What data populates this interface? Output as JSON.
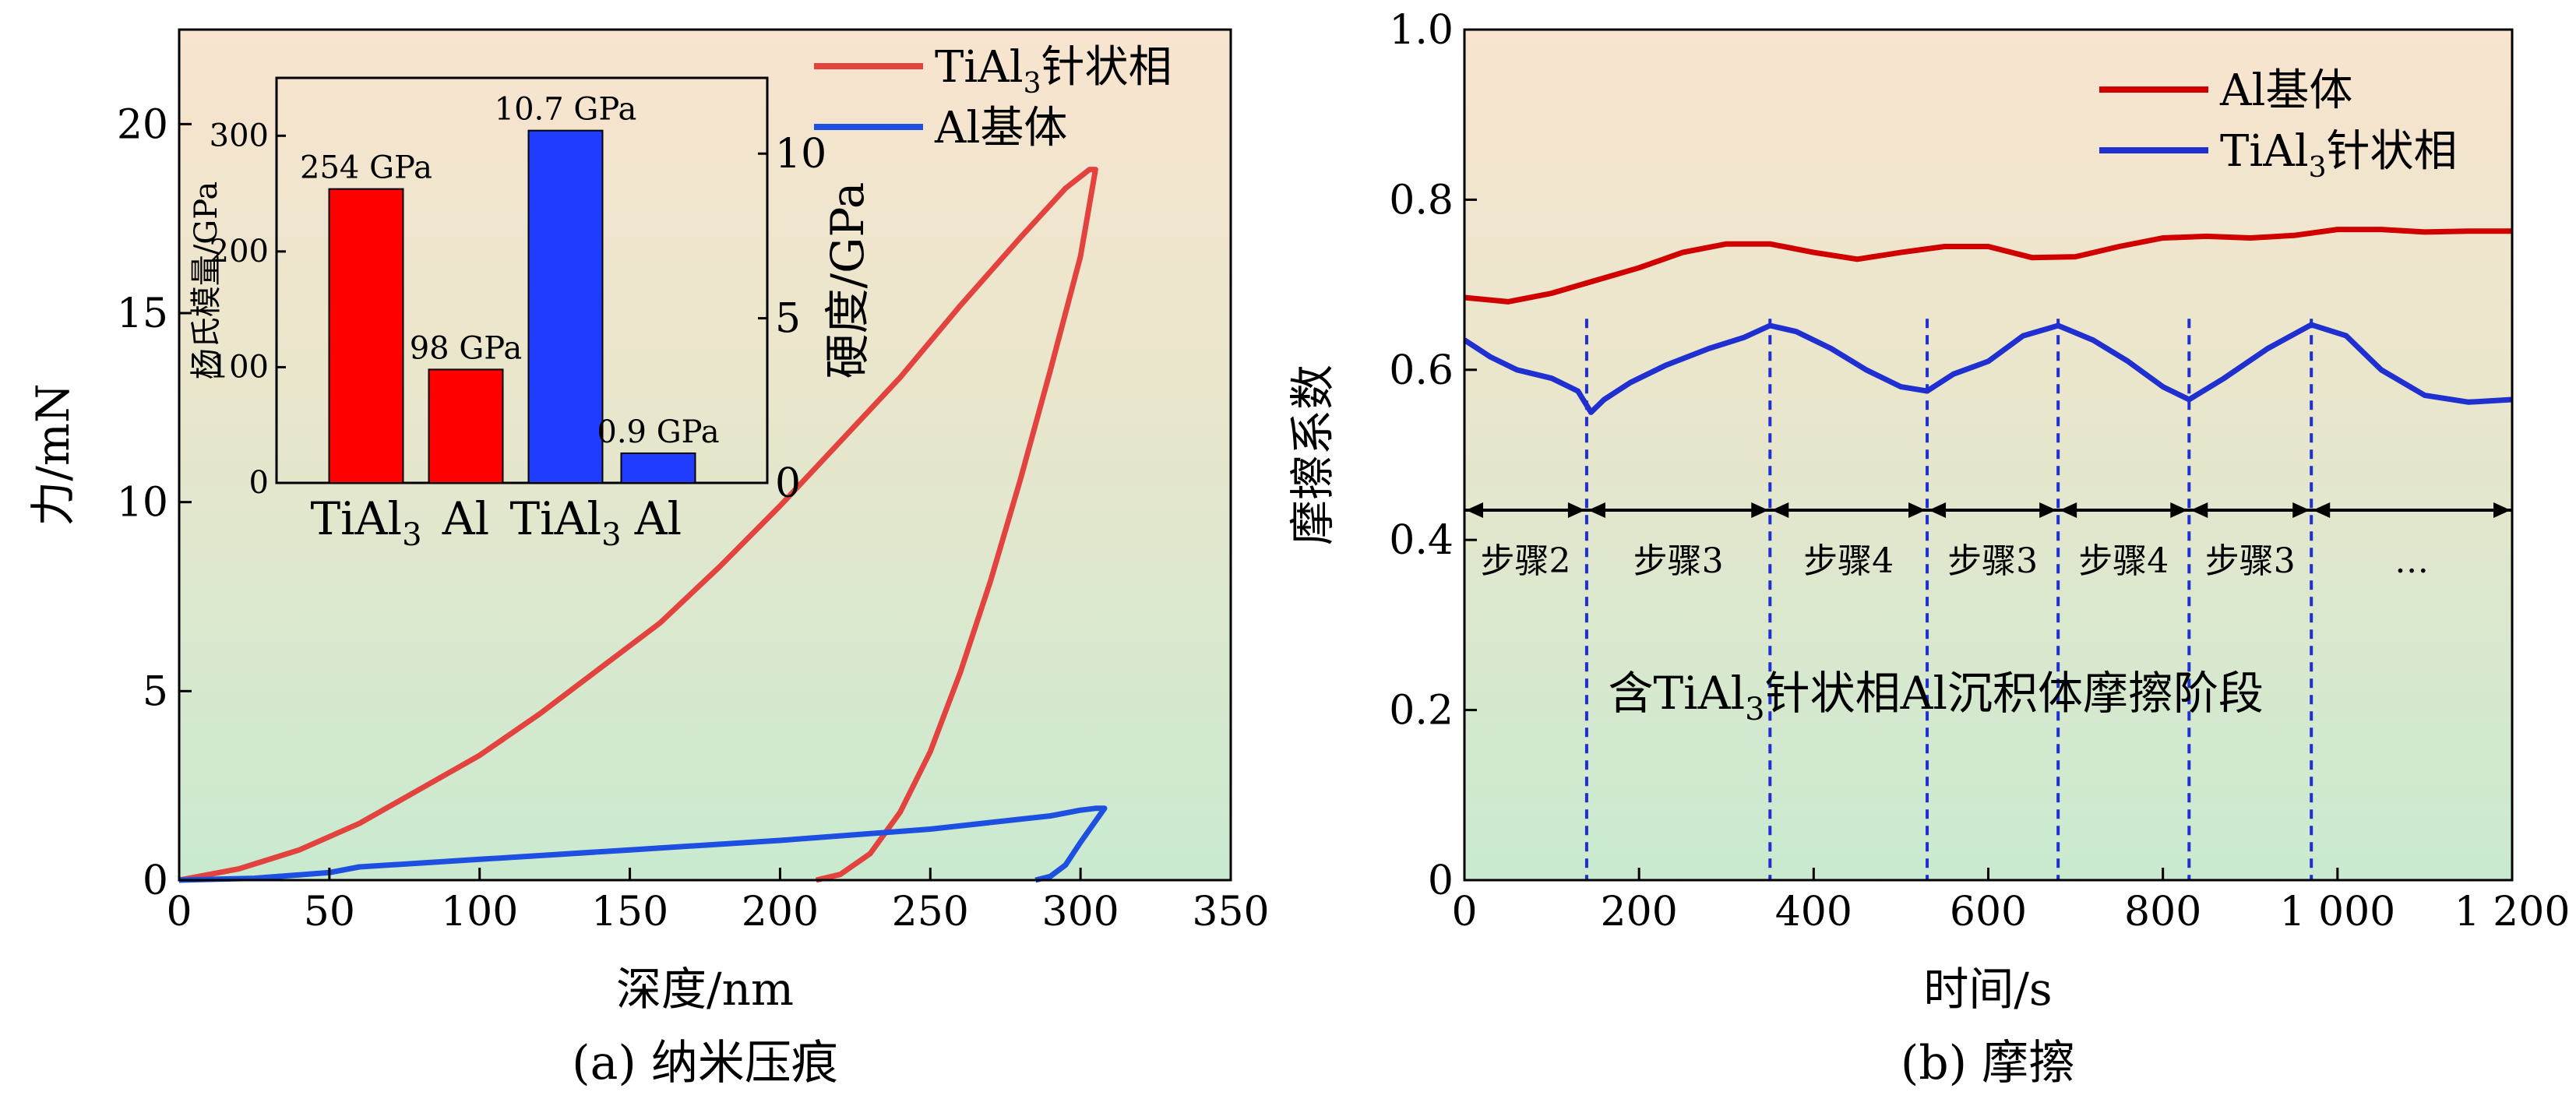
{
  "colors": {
    "red": "#e2433f",
    "blue": "#1d4fe0",
    "inset_red": "#ff0000",
    "inset_blue": "#1f3cff",
    "dark_red": "#d00000",
    "dark_blue": "#1f2fd0",
    "bg_top": "#f8e4cf",
    "bg_bottom": "#c9ead0"
  },
  "chart_data": [
    {
      "type": "line",
      "caption": "(a) 纳米压痕",
      "xlabel": "深度/nm",
      "ylabel": "力/mN",
      "xlim": [
        0,
        350
      ],
      "ylim": [
        0,
        22.5
      ],
      "xticks": [
        0,
        50,
        100,
        150,
        200,
        250,
        300,
        350
      ],
      "yticks": [
        0,
        5,
        10,
        15,
        20
      ],
      "legend": {
        "position": "top-right",
        "entries": [
          {
            "label_main": "TiAl",
            "label_sub": "3",
            "label_tail": "针状相",
            "color": "red"
          },
          {
            "label_main": "Al基体",
            "label_sub": "",
            "label_tail": "",
            "color": "blue"
          }
        ]
      },
      "series": [
        {
          "name": "TiAl3针状相",
          "color": "red",
          "x": [
            0,
            20,
            40,
            60,
            80,
            100,
            120,
            140,
            160,
            180,
            200,
            220,
            240,
            260,
            280,
            295,
            303,
            305,
            300,
            290,
            280,
            270,
            260,
            250,
            240,
            230,
            220,
            212
          ],
          "y": [
            0,
            0.3,
            0.8,
            1.5,
            2.4,
            3.3,
            4.4,
            5.6,
            6.8,
            8.3,
            9.9,
            11.6,
            13.3,
            15.2,
            17.0,
            18.3,
            18.8,
            18.8,
            16.5,
            13.5,
            10.6,
            7.9,
            5.5,
            3.4,
            1.8,
            0.7,
            0.15,
            0
          ]
        },
        {
          "name": "Al基体",
          "color": "blue",
          "x": [
            0,
            25,
            50,
            60,
            100,
            150,
            200,
            250,
            290,
            300,
            305,
            308,
            300,
            295,
            290,
            285
          ],
          "y": [
            0,
            0.05,
            0.2,
            0.35,
            0.55,
            0.8,
            1.05,
            1.35,
            1.7,
            1.85,
            1.9,
            1.9,
            1.0,
            0.4,
            0.1,
            0
          ]
        }
      ],
      "inset": {
        "type": "bar",
        "ylabel_left": "杨氏模量/GPa",
        "ylabel_right": "硬度/GPa",
        "ylim_left": [
          0,
          350
        ],
        "yticks_left": [
          0,
          100,
          200,
          300
        ],
        "ylim_right": [
          0,
          12.3
        ],
        "yticks_right": [
          0,
          5,
          10
        ],
        "categories": [
          {
            "main": "TiAl",
            "sub": "3"
          },
          {
            "main": "Al",
            "sub": ""
          },
          {
            "main": "TiAl",
            "sub": "3"
          },
          {
            "main": "Al",
            "sub": ""
          }
        ],
        "bars": [
          {
            "group": "杨氏模量",
            "axis": "left",
            "value": 254,
            "label": "254 GPa",
            "color": "inset_red"
          },
          {
            "group": "杨氏模量",
            "axis": "left",
            "value": 98,
            "label": "98 GPa",
            "color": "inset_red"
          },
          {
            "group": "硬度",
            "axis": "right",
            "value": 10.7,
            "label": "10.7 GPa",
            "color": "inset_blue"
          },
          {
            "group": "硬度",
            "axis": "right",
            "value": 0.9,
            "label": "0.9 GPa",
            "color": "inset_blue"
          }
        ]
      }
    },
    {
      "type": "line",
      "caption": "(b) 摩擦",
      "xlabel": "时间/s",
      "ylabel": "摩擦系数",
      "xlim": [
        0,
        1200
      ],
      "ylim": [
        0,
        1.0
      ],
      "xticks": [
        0,
        200,
        400,
        600,
        800,
        1000,
        1200
      ],
      "xtick_labels": [
        "0",
        "200",
        "400",
        "600",
        "800",
        "1 000",
        "1 200"
      ],
      "yticks": [
        0,
        0.2,
        0.4,
        0.6,
        0.8,
        1.0
      ],
      "ytick_labels": [
        "0",
        "0.2",
        "0.4",
        "0.6",
        "0.8",
        "1.0"
      ],
      "legend": {
        "position": "top-right",
        "entries": [
          {
            "label_main": "Al基体",
            "label_sub": "",
            "label_tail": "",
            "color": "dark_red"
          },
          {
            "label_main": "TiAl",
            "label_sub": "3",
            "label_tail": "针状相",
            "color": "dark_blue"
          }
        ]
      },
      "series": [
        {
          "name": "Al基体",
          "color": "dark_red",
          "x": [
            0,
            50,
            100,
            150,
            200,
            250,
            300,
            350,
            400,
            450,
            500,
            550,
            600,
            650,
            700,
            750,
            800,
            850,
            900,
            950,
            1000,
            1050,
            1100,
            1150,
            1200
          ],
          "y": [
            0.685,
            0.68,
            0.69,
            0.705,
            0.72,
            0.738,
            0.748,
            0.748,
            0.738,
            0.73,
            0.738,
            0.745,
            0.745,
            0.732,
            0.733,
            0.745,
            0.755,
            0.757,
            0.755,
            0.758,
            0.765,
            0.765,
            0.762,
            0.763,
            0.763
          ]
        },
        {
          "name": "TiAl3针状相",
          "color": "dark_blue",
          "x": [
            0,
            30,
            60,
            100,
            130,
            145,
            160,
            190,
            230,
            280,
            320,
            350,
            380,
            420,
            460,
            500,
            530,
            560,
            600,
            640,
            680,
            720,
            760,
            800,
            830,
            870,
            920,
            970,
            1010,
            1050,
            1100,
            1150,
            1200
          ],
          "y": [
            0.635,
            0.615,
            0.6,
            0.59,
            0.575,
            0.55,
            0.565,
            0.585,
            0.605,
            0.625,
            0.638,
            0.652,
            0.645,
            0.625,
            0.6,
            0.58,
            0.575,
            0.595,
            0.61,
            0.64,
            0.652,
            0.635,
            0.61,
            0.58,
            0.565,
            0.59,
            0.625,
            0.653,
            0.64,
            0.6,
            0.57,
            0.562,
            0.565
          ]
        }
      ],
      "step_band": {
        "y": 0.435,
        "boundaries": [
          0,
          140,
          350,
          530,
          680,
          830,
          970,
          1200
        ],
        "labels": [
          "步骤2",
          "步骤3",
          "步骤4",
          "步骤3",
          "步骤4",
          "步骤3",
          "…"
        ]
      },
      "annotation": {
        "main": "含TiAl",
        "sub": "3",
        "tail": "针状相Al沉积体摩擦阶段",
        "x": 540,
        "y": 0.22
      }
    }
  ]
}
